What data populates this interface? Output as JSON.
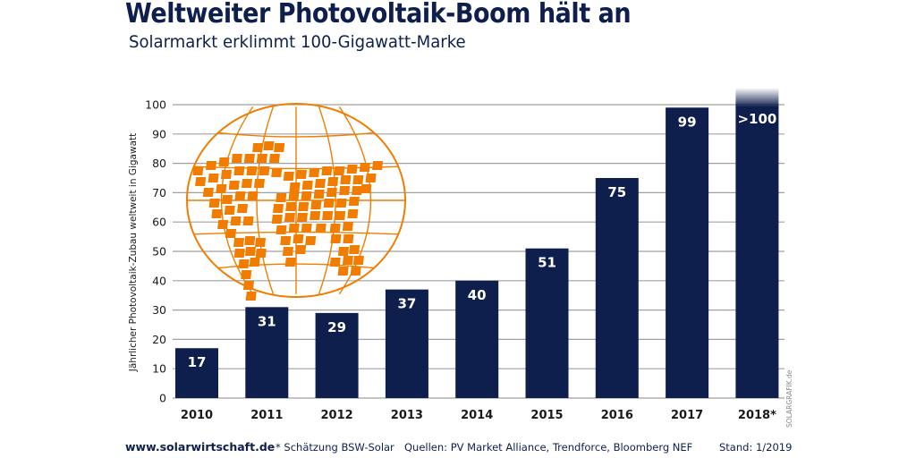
{
  "header": {
    "title": "Weltweiter Photovoltaik-Boom hält an",
    "subtitle": "Solarmarkt erklimmt 100-Gigawatt-Marke"
  },
  "footer": {
    "url": "www.solarwirtschaft.de",
    "note": "* Schätzung BSW-Solar",
    "sources": "Quellen: PV Market Alliance, Trendforce, Bloomberg NEF",
    "date": "Stand: 1/2019",
    "credit": "SOLARGRAFIK.de"
  },
  "colors": {
    "bar": "#0f1f4d",
    "grid": "#a0a0a0",
    "globe": "#f07d00",
    "text": "#1a1a1a"
  },
  "chart_data": {
    "type": "bar",
    "title": "Weltweiter Photovoltaik-Boom hält an",
    "subtitle": "Solarmarkt erklimmt 100-Gigawatt-Marke",
    "xlabel": "",
    "ylabel": "Jährlicher Photovoltaik-Zubau weltweit in Gigawatt",
    "categories": [
      "2010",
      "2011",
      "2012",
      "2013",
      "2014",
      "2015",
      "2016",
      "2017",
      "2018*"
    ],
    "values": [
      17,
      31,
      29,
      37,
      40,
      51,
      75,
      99,
      105
    ],
    "data_labels": [
      "17",
      "31",
      "29",
      "37",
      "40",
      "51",
      "75",
      "99",
      ">100"
    ],
    "ylim": [
      0,
      100
    ],
    "yticks": [
      0,
      10,
      20,
      30,
      40,
      50,
      60,
      70,
      80,
      90,
      100
    ],
    "grid": true,
    "legend": "none",
    "annotations": [
      "2018*: estimate (>100), bar fades out above axis top"
    ]
  }
}
